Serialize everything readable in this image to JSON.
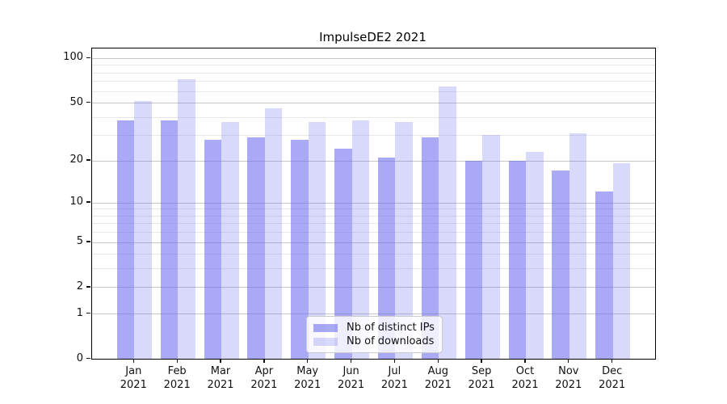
{
  "title": "ImpulseDE2 2021",
  "chart_data": {
    "type": "bar",
    "title": "ImpulseDE2 2021",
    "categories": [
      "Jan 2021",
      "Feb 2021",
      "Mar 2021",
      "Apr 2021",
      "May 2021",
      "Jun 2021",
      "Jul 2021",
      "Aug 2021",
      "Sep 2021",
      "Oct 2021",
      "Nov 2021",
      "Dec 2021"
    ],
    "series": [
      {
        "name": "Nb of distinct IPs",
        "color": "rgba(102,102,238,0.56)",
        "hex_over_white": "#aaaaf7",
        "values": [
          38,
          38,
          28,
          29,
          28,
          24,
          21,
          29,
          20,
          20,
          17,
          12
        ]
      },
      {
        "name": "Nb of downloads",
        "color": "rgba(102,102,238,0.25)",
        "hex_over_white": "#d9d9fa",
        "values": [
          51,
          72,
          37,
          46,
          37,
          38,
          37,
          64,
          30,
          23,
          31,
          19
        ]
      }
    ],
    "xlabel": "",
    "ylabel": "",
    "yscale": "log1p",
    "ylim": [
      0,
      115
    ],
    "ytick_values": [
      100,
      50,
      20,
      10,
      5,
      2,
      1,
      0
    ],
    "ytick_labels": [
      "100",
      "50",
      "20",
      "10",
      "5",
      "2",
      "1",
      "0"
    ],
    "major_gridlines": [
      1,
      2,
      5,
      10,
      20,
      50,
      100
    ],
    "minor_gridlines": [
      3,
      4,
      6,
      7,
      8,
      9,
      30,
      40,
      60,
      70,
      80,
      90
    ],
    "grid": true,
    "legend_position": "lower center",
    "accent_color": "#6666ee",
    "major_grid_color": "#c6c6c6",
    "minor_grid_color": "#e8e8e8"
  }
}
